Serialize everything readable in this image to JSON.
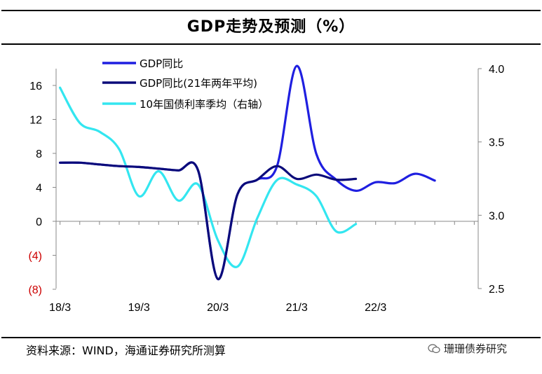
{
  "header": {
    "title": "GDP走势及预测（%）"
  },
  "footer": {
    "source": "资料来源：WIND，海通证券研究所测算",
    "watermark": "珊珊债券研究"
  },
  "colors": {
    "gdp_yoy": "#1f1fe0",
    "gdp_2yr_avg": "#0b0b7a",
    "bond_10y": "#33e6f0",
    "axis": "#888888",
    "negative_label": "#cc0000"
  },
  "chart_data": {
    "type": "line",
    "title": "GDP走势及预测（%）",
    "x_ticks": [
      "18/3",
      "19/3",
      "20/3",
      "21/3",
      "22/3"
    ],
    "y_left": {
      "ticks": [
        "16",
        "12",
        "8",
        "4",
        "0",
        "(4)",
        "(8)"
      ],
      "range": [
        -8,
        18
      ]
    },
    "y_right": {
      "ticks": [
        "4.0",
        "3.5",
        "3.0",
        "2.5"
      ],
      "range": [
        2.5,
        4.0
      ]
    },
    "series": [
      {
        "name": "GDP同比",
        "axis": "left",
        "x": [
          2018.0,
          2018.25,
          2018.5,
          2018.75,
          2019.0,
          2019.25,
          2019.5,
          2019.75,
          2020.0,
          2020.25,
          2020.5,
          2020.75,
          2021.0,
          2021.25,
          2021.5,
          2021.75,
          2022.0,
          2022.25,
          2022.5,
          2022.75,
          2023.0,
          2023.25
        ],
        "values": [
          6.9,
          6.9,
          6.7,
          6.5,
          6.4,
          6.2,
          6.0,
          6.0,
          -6.8,
          3.2,
          4.9,
          6.5,
          18.3,
          7.9,
          4.9,
          3.6,
          4.6,
          4.5,
          5.6,
          4.8,
          null,
          null
        ]
      },
      {
        "name": "GDP同比(21年两年平均)",
        "axis": "left",
        "x": [
          2018.0,
          2018.25,
          2018.5,
          2018.75,
          2019.0,
          2019.25,
          2019.5,
          2019.75,
          2020.0,
          2020.25,
          2020.5,
          2020.75,
          2021.0,
          2021.25,
          2021.5,
          2021.75
        ],
        "values": [
          6.9,
          6.9,
          6.7,
          6.5,
          6.4,
          6.2,
          6.0,
          6.0,
          -6.8,
          3.2,
          4.9,
          6.5,
          5.0,
          5.5,
          4.9,
          5.0
        ]
      },
      {
        "name": "10年国债利率季均（右轴）",
        "axis": "right",
        "x": [
          2018.0,
          2018.25,
          2018.5,
          2018.75,
          2019.0,
          2019.25,
          2019.5,
          2019.75,
          2020.0,
          2020.25,
          2020.5,
          2020.75,
          2021.0,
          2021.25,
          2021.5,
          2021.75
        ],
        "values": [
          3.87,
          3.63,
          3.57,
          3.45,
          3.13,
          3.3,
          3.1,
          3.21,
          2.83,
          2.65,
          2.98,
          3.24,
          3.21,
          3.13,
          2.89,
          2.94
        ]
      }
    ],
    "legend": [
      "GDP同比",
      "GDP同比(21年两年平均)",
      "10年国债利率季均（右轴）"
    ],
    "legend_position": "top-left"
  }
}
